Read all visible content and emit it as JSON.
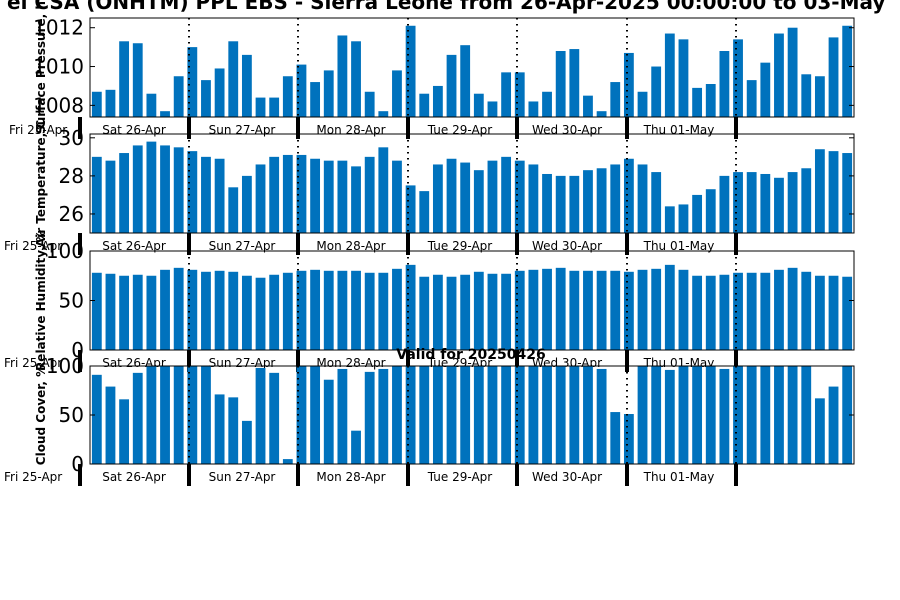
{
  "figure": {
    "title": "el CSA (ONHTM) PPL EBS - Sierra Leone from 26-Apr-2025 00:00:00 to 03-May",
    "valid_label": "Valid for 20250426",
    "day_labels": [
      "Sat 26-Apr",
      "Sun 27-Apr",
      "Mon 28-Apr",
      "Tue 29-Apr",
      "Wed 30-Apr",
      "Thu 01-May"
    ],
    "bar_color": "#0072bd"
  },
  "chart_data": [
    {
      "type": "bar",
      "ylabel": "Surface Pressure, hPa",
      "ylabel_shown": "Surface Pressure, h",
      "start_label": "Fri 25-Apr",
      "ylim": [
        1007.4,
        1012.5
      ],
      "yticks": [
        1008,
        1010,
        1012
      ],
      "values": [
        1008.7,
        1008.8,
        1011.3,
        1011.2,
        1008.6,
        1007.7,
        1009.5,
        1011.0,
        1009.3,
        1009.9,
        1011.3,
        1010.6,
        1008.4,
        1008.4,
        1009.5,
        1010.1,
        1009.2,
        1009.8,
        1011.6,
        1011.3,
        1008.7,
        1007.7,
        1009.8,
        1012.1,
        1008.6,
        1009.0,
        1010.6,
        1011.1,
        1008.6,
        1008.2,
        1009.7,
        1009.7,
        1008.2,
        1008.7,
        1010.8,
        1010.9,
        1008.5,
        1007.7,
        1009.2,
        1010.7,
        1008.7,
        1010.0,
        1011.7,
        1011.4,
        1008.9,
        1009.1,
        1010.8,
        1011.4,
        1009.3,
        1010.2,
        1011.7,
        1012.0,
        1009.6,
        1009.5,
        1011.5,
        1012.1
      ]
    },
    {
      "type": "bar",
      "ylabel": "Air Temperature, C",
      "ylabel_shown": "Air Temperature, C",
      "start_label": "Fri 25-Apr",
      "ylim": [
        25,
        30.2
      ],
      "yticks": [
        26,
        28,
        30
      ],
      "values": [
        29.0,
        28.8,
        29.2,
        29.6,
        29.8,
        29.6,
        29.5,
        29.3,
        29.0,
        28.9,
        27.4,
        28.0,
        28.6,
        29.0,
        29.1,
        29.1,
        28.9,
        28.8,
        28.8,
        28.5,
        29.0,
        29.5,
        28.8,
        27.5,
        27.2,
        28.6,
        28.9,
        28.7,
        28.3,
        28.8,
        29.0,
        28.8,
        28.6,
        28.1,
        28.0,
        28.0,
        28.3,
        28.4,
        28.6,
        28.9,
        28.6,
        28.2,
        26.4,
        26.5,
        27.0,
        27.3,
        28.0,
        28.2,
        28.2,
        28.1,
        27.9,
        28.2,
        28.4,
        29.4,
        29.3,
        29.2
      ]
    },
    {
      "type": "bar",
      "ylabel": "Relative Humidity, %",
      "ylabel_shown": "Relative Humidity, %",
      "start_label": "Fri 25-Apr",
      "ylim": [
        0,
        100
      ],
      "yticks": [
        0,
        50,
        100
      ],
      "values": [
        78,
        77,
        75,
        76,
        75,
        81,
        83,
        81,
        79,
        80,
        79,
        75,
        73,
        76,
        78,
        80,
        81,
        80,
        80,
        80,
        78,
        78,
        82,
        86,
        74,
        76,
        74,
        76,
        79,
        77,
        77,
        80,
        81,
        82,
        83,
        80,
        80,
        80,
        80,
        79,
        81,
        82,
        86,
        81,
        75,
        75,
        76,
        78,
        78,
        78,
        81,
        83,
        79,
        75,
        75,
        74
      ]
    },
    {
      "type": "bar",
      "ylabel": "Cloud Cover, %",
      "ylabel_shown": "Cloud Cover, %",
      "start_label": "Fri 25-Apr",
      "ylim": [
        0,
        100
      ],
      "yticks": [
        0,
        50,
        100
      ],
      "values": [
        91,
        79,
        66,
        93,
        100,
        100,
        100,
        100,
        100,
        71,
        68,
        44,
        98,
        93,
        5,
        100,
        100,
        86,
        97,
        34,
        94,
        97,
        100,
        100,
        100,
        100,
        100,
        100,
        100,
        100,
        100,
        100,
        100,
        100,
        100,
        100,
        100,
        97,
        53,
        51,
        100,
        100,
        96,
        100,
        100,
        100,
        97,
        100,
        100,
        100,
        100,
        100,
        100,
        67,
        79,
        100
      ]
    }
  ]
}
